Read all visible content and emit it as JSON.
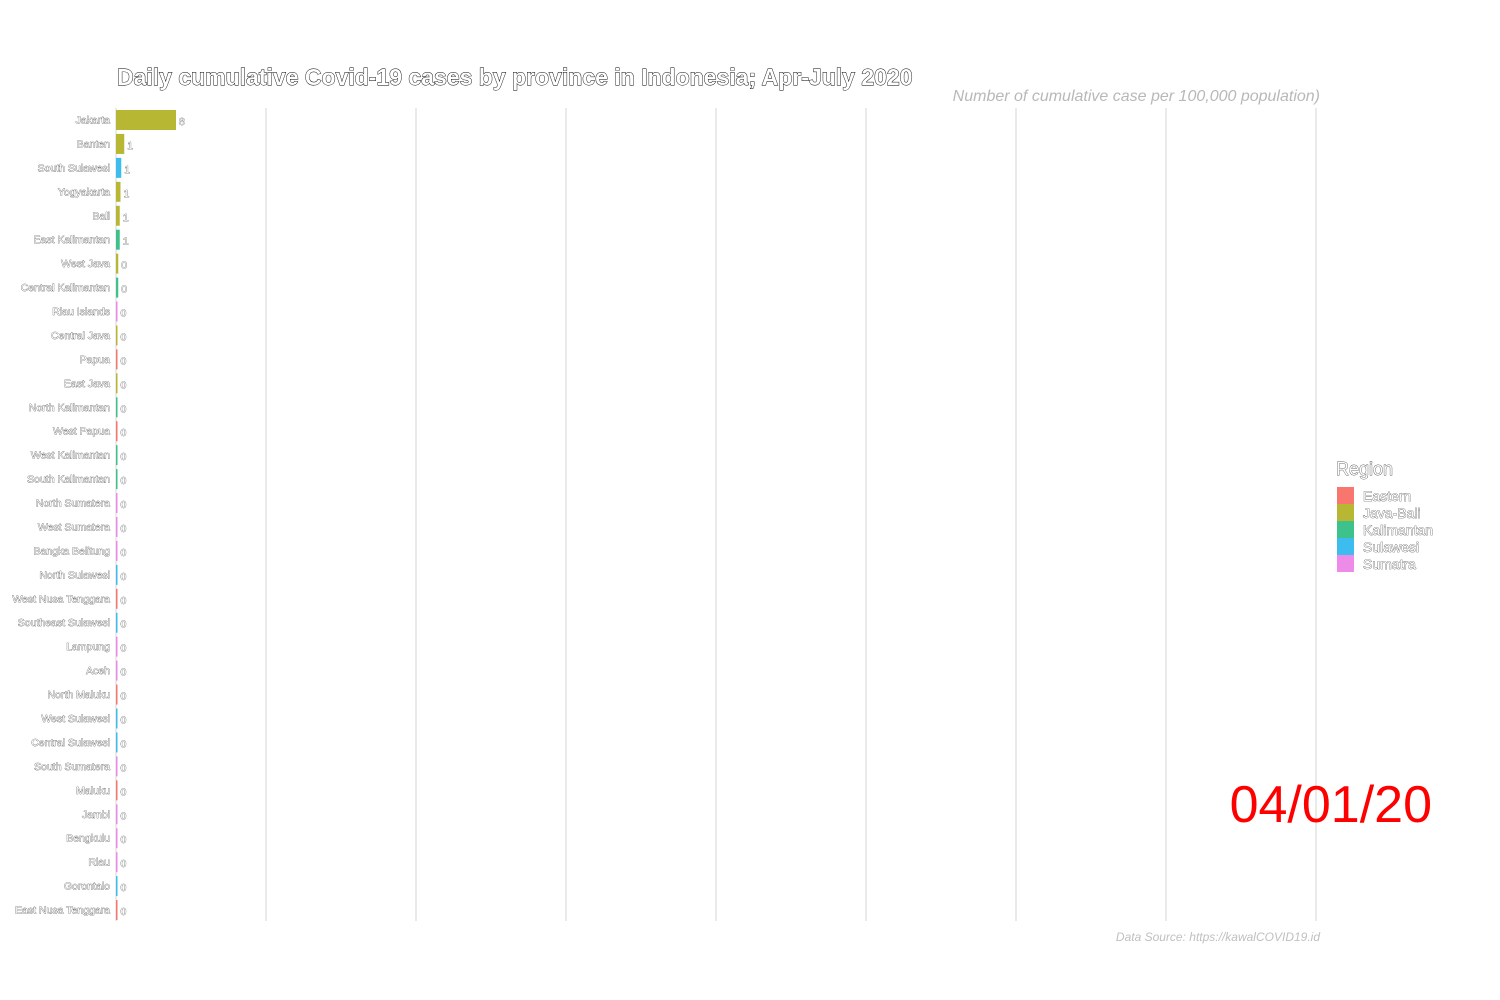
{
  "chart_data": {
    "type": "bar",
    "orientation": "horizontal",
    "title": "Daily cumulative Covid-19 cases by province in Indonesia; Apr-July 2020",
    "subtitle": "Number of cumulative case per 100,000 population)",
    "caption": "Data Source: https://kawalCOVID19.id",
    "date_label": "04/01/20",
    "legend": {
      "title": "Region",
      "position": "right",
      "items": [
        {
          "name": "Eastern",
          "color": "#F8766D"
        },
        {
          "name": "Java-Bali",
          "color": "#B7B734"
        },
        {
          "name": "Kalimantan",
          "color": "#3DC28B"
        },
        {
          "name": "Sulawesi",
          "color": "#3DBDEF"
        },
        {
          "name": "Sumatra",
          "color": "#EE8AE8"
        }
      ]
    },
    "grid": true,
    "xlim": [
      0,
      160
    ],
    "gridlines": [
      0,
      20,
      40,
      60,
      80,
      100,
      120,
      140,
      160
    ],
    "bars": [
      {
        "province": "Jakarta",
        "region": "Java-Bali",
        "value": 8,
        "label": "8"
      },
      {
        "province": "Banten",
        "region": "Java-Bali",
        "value": 1.1,
        "label": "1"
      },
      {
        "province": "South Sulawesi",
        "region": "Sulawesi",
        "value": 0.7,
        "label": "1"
      },
      {
        "province": "Yogyakarta",
        "region": "Java-Bali",
        "value": 0.6,
        "label": "1"
      },
      {
        "province": "Bali",
        "region": "Java-Bali",
        "value": 0.5,
        "label": "1"
      },
      {
        "province": "East Kalimantan",
        "region": "Kalimantan",
        "value": 0.5,
        "label": "1"
      },
      {
        "province": "West Java",
        "region": "Java-Bali",
        "value": 0.3,
        "label": "0"
      },
      {
        "province": "Central Kalimantan",
        "region": "Kalimantan",
        "value": 0.3,
        "label": "0"
      },
      {
        "province": "Riau Islands",
        "region": "Sumatra",
        "value": 0.2,
        "label": "0"
      },
      {
        "province": "Central Java",
        "region": "Java-Bali",
        "value": 0.2,
        "label": "0"
      },
      {
        "province": "Papua",
        "region": "Eastern",
        "value": 0.2,
        "label": "0"
      },
      {
        "province": "East Java",
        "region": "Java-Bali",
        "value": 0.2,
        "label": "0"
      },
      {
        "province": "North Kalimantan",
        "region": "Kalimantan",
        "value": 0.2,
        "label": "0"
      },
      {
        "province": "West Papua",
        "region": "Eastern",
        "value": 0.15,
        "label": "0"
      },
      {
        "province": "West Kalimantan",
        "region": "Kalimantan",
        "value": 0.15,
        "label": "0"
      },
      {
        "province": "South Kalimantan",
        "region": "Kalimantan",
        "value": 0.15,
        "label": "0"
      },
      {
        "province": "North Sumatera",
        "region": "Sumatra",
        "value": 0.1,
        "label": "0"
      },
      {
        "province": "West Sumatera",
        "region": "Sumatra",
        "value": 0.1,
        "label": "0"
      },
      {
        "province": "Bangka Belitung",
        "region": "Sumatra",
        "value": 0.1,
        "label": "0"
      },
      {
        "province": "North Sulawesi",
        "region": "Sulawesi",
        "value": 0.1,
        "label": "0"
      },
      {
        "province": "West Nusa Tenggara",
        "region": "Eastern",
        "value": 0.1,
        "label": "0"
      },
      {
        "province": "Southeast Sulawesi",
        "region": "Sulawesi",
        "value": 0.1,
        "label": "0"
      },
      {
        "province": "Lampung",
        "region": "Sumatra",
        "value": 0.1,
        "label": "0"
      },
      {
        "province": "Aceh",
        "region": "Sumatra",
        "value": 0.1,
        "label": "0"
      },
      {
        "province": "North Maluku",
        "region": "Eastern",
        "value": 0.05,
        "label": "0"
      },
      {
        "province": "West Sulawesi",
        "region": "Sulawesi",
        "value": 0.05,
        "label": "0"
      },
      {
        "province": "Central Sulawesi",
        "region": "Sulawesi",
        "value": 0.05,
        "label": "0"
      },
      {
        "province": "South Sumatera",
        "region": "Sumatra",
        "value": 0.05,
        "label": "0"
      },
      {
        "province": "Maluku",
        "region": "Eastern",
        "value": 0.05,
        "label": "0"
      },
      {
        "province": "Jambi",
        "region": "Sumatra",
        "value": 0.05,
        "label": "0"
      },
      {
        "province": "Bengkulu",
        "region": "Sumatra",
        "value": 0.05,
        "label": "0"
      },
      {
        "province": "Riau",
        "region": "Sumatra",
        "value": 0.05,
        "label": "0"
      },
      {
        "province": "Gorontalo",
        "region": "Sulawesi",
        "value": 0.05,
        "label": "0"
      },
      {
        "province": "East Nusa Tenggara",
        "region": "Eastern",
        "value": 0.05,
        "label": "0"
      }
    ]
  }
}
